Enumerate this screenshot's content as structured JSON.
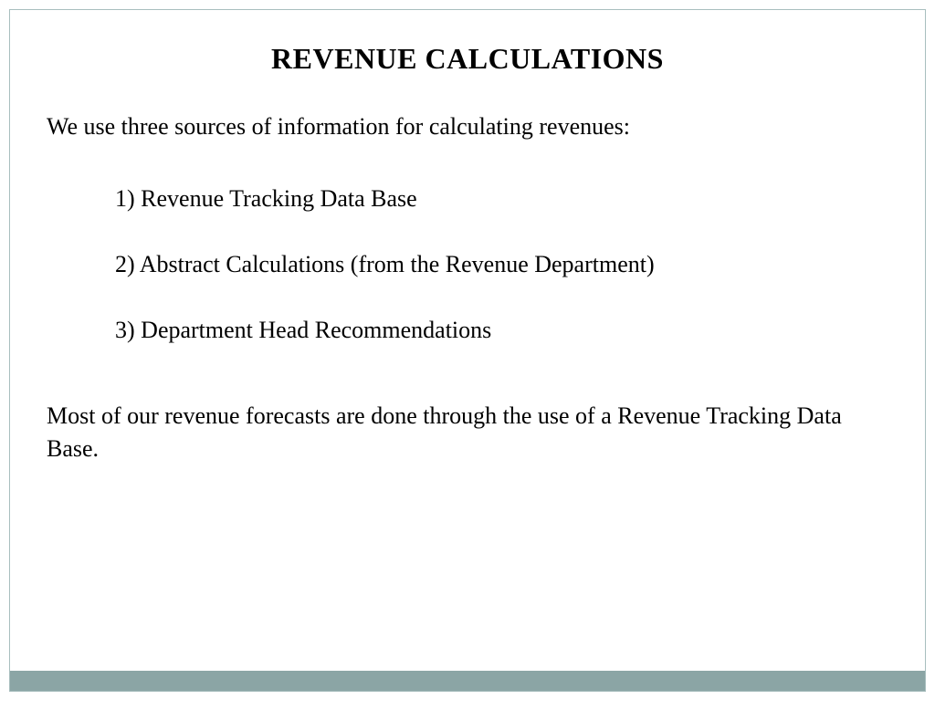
{
  "slide": {
    "title": "REVENUE CALCULATIONS",
    "intro": "We use three sources of information for calculating revenues:",
    "items": [
      {
        "number": "1)",
        "text": "Revenue Tracking Data Base",
        "spacing": "wide"
      },
      {
        "number": "2)",
        "text": "Abstract Calculations (from the Revenue Department)",
        "spacing": "tight"
      },
      {
        "number": "3)",
        "text": "Department Head Recommendations",
        "spacing": "tight"
      }
    ],
    "closing": "Most of our revenue forecasts are done through the use of a Revenue Tracking Data Base."
  },
  "styling": {
    "border_color": "#a8bebe",
    "bottom_bar_color": "#8ba5a5",
    "background_color": "#ffffff",
    "text_color": "#000000",
    "title_fontsize": 32,
    "body_fontsize": 26,
    "font_family": "Georgia, serif"
  }
}
